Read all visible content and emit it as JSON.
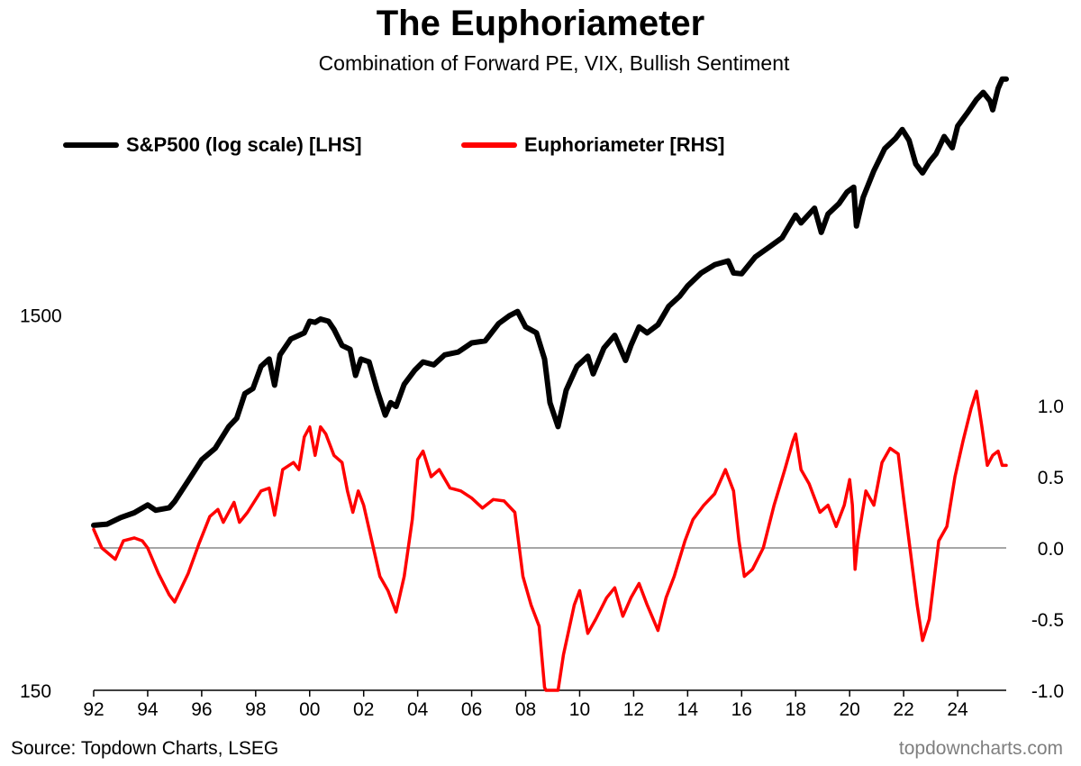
{
  "chart_data": {
    "type": "line",
    "title": "The Euphoriameter",
    "subtitle": "Combination of Forward PE, VIX, Bullish Sentiment",
    "x_ticks": [
      "92",
      "94",
      "96",
      "98",
      "00",
      "02",
      "04",
      "06",
      "08",
      "10",
      "12",
      "14",
      "16",
      "18",
      "20",
      "22",
      "24"
    ],
    "x_tick_years": [
      1992,
      1994,
      1996,
      1998,
      2000,
      2002,
      2004,
      2006,
      2008,
      2010,
      2012,
      2014,
      2016,
      2018,
      2020,
      2022,
      2024
    ],
    "x_range": [
      1992.0,
      2025.8
    ],
    "left_axis": {
      "scale": "log",
      "range": [
        150,
        6500
      ],
      "tick_values": [
        150,
        1500
      ],
      "tick_labels": [
        "150",
        "1500"
      ]
    },
    "right_axis": {
      "scale": "linear",
      "range": [
        -1.0,
        1.0
      ],
      "tick_values": [
        -1.0,
        -0.5,
        0.0,
        0.5,
        1.0
      ],
      "tick_labels": [
        "-1.0",
        "-0.5",
        "0.0",
        "0.5",
        "1.0"
      ]
    },
    "zero_line": true,
    "legend_placement": "top-left",
    "series": [
      {
        "name": "S&P500 (log scale) [LHS]",
        "axis": "left",
        "color": "#000000",
        "points": [
          [
            1992.0,
            415
          ],
          [
            1992.5,
            418
          ],
          [
            1993.0,
            435
          ],
          [
            1993.5,
            448
          ],
          [
            1994.0,
            470
          ],
          [
            1994.3,
            455
          ],
          [
            1994.8,
            462
          ],
          [
            1995.0,
            480
          ],
          [
            1995.5,
            545
          ],
          [
            1996.0,
            620
          ],
          [
            1996.5,
            665
          ],
          [
            1997.0,
            760
          ],
          [
            1997.3,
            800
          ],
          [
            1997.6,
            930
          ],
          [
            1997.9,
            960
          ],
          [
            1998.2,
            1100
          ],
          [
            1998.5,
            1150
          ],
          [
            1998.7,
            980
          ],
          [
            1998.9,
            1180
          ],
          [
            1999.3,
            1300
          ],
          [
            1999.6,
            1330
          ],
          [
            1999.8,
            1350
          ],
          [
            2000.0,
            1450
          ],
          [
            2000.2,
            1440
          ],
          [
            2000.4,
            1470
          ],
          [
            2000.7,
            1450
          ],
          [
            2000.9,
            1380
          ],
          [
            2001.2,
            1250
          ],
          [
            2001.5,
            1220
          ],
          [
            2001.7,
            1040
          ],
          [
            2001.9,
            1150
          ],
          [
            2002.2,
            1130
          ],
          [
            2002.5,
            950
          ],
          [
            2002.8,
            815
          ],
          [
            2003.0,
            880
          ],
          [
            2003.2,
            860
          ],
          [
            2003.5,
            985
          ],
          [
            2003.9,
            1075
          ],
          [
            2004.2,
            1130
          ],
          [
            2004.6,
            1110
          ],
          [
            2005.0,
            1180
          ],
          [
            2005.5,
            1200
          ],
          [
            2006.0,
            1270
          ],
          [
            2006.5,
            1285
          ],
          [
            2007.0,
            1430
          ],
          [
            2007.4,
            1500
          ],
          [
            2007.7,
            1540
          ],
          [
            2008.0,
            1400
          ],
          [
            2008.4,
            1350
          ],
          [
            2008.7,
            1150
          ],
          [
            2008.9,
            880
          ],
          [
            2009.2,
            760
          ],
          [
            2009.5,
            950
          ],
          [
            2009.9,
            1100
          ],
          [
            2010.3,
            1170
          ],
          [
            2010.5,
            1050
          ],
          [
            2010.9,
            1230
          ],
          [
            2011.3,
            1330
          ],
          [
            2011.7,
            1140
          ],
          [
            2011.9,
            1250
          ],
          [
            2012.2,
            1400
          ],
          [
            2012.5,
            1350
          ],
          [
            2012.9,
            1420
          ],
          [
            2013.3,
            1590
          ],
          [
            2013.7,
            1690
          ],
          [
            2014.0,
            1800
          ],
          [
            2014.5,
            1950
          ],
          [
            2015.0,
            2050
          ],
          [
            2015.5,
            2100
          ],
          [
            2015.7,
            1950
          ],
          [
            2016.0,
            1940
          ],
          [
            2016.5,
            2150
          ],
          [
            2017.0,
            2280
          ],
          [
            2017.5,
            2420
          ],
          [
            2018.0,
            2780
          ],
          [
            2018.2,
            2650
          ],
          [
            2018.7,
            2900
          ],
          [
            2018.95,
            2500
          ],
          [
            2019.2,
            2800
          ],
          [
            2019.6,
            2980
          ],
          [
            2019.9,
            3200
          ],
          [
            2020.15,
            3300
          ],
          [
            2020.25,
            2600
          ],
          [
            2020.5,
            3100
          ],
          [
            2020.9,
            3650
          ],
          [
            2021.3,
            4180
          ],
          [
            2021.7,
            4450
          ],
          [
            2021.95,
            4700
          ],
          [
            2022.2,
            4400
          ],
          [
            2022.45,
            3800
          ],
          [
            2022.7,
            3600
          ],
          [
            2022.95,
            3850
          ],
          [
            2023.2,
            4050
          ],
          [
            2023.5,
            4500
          ],
          [
            2023.8,
            4200
          ],
          [
            2024.0,
            4800
          ],
          [
            2024.4,
            5250
          ],
          [
            2024.7,
            5650
          ],
          [
            2024.95,
            5900
          ],
          [
            2025.2,
            5600
          ],
          [
            2025.3,
            5300
          ],
          [
            2025.5,
            6050
          ],
          [
            2025.65,
            6400
          ],
          [
            2025.8,
            6400
          ]
        ]
      },
      {
        "name": "Euphoriameter [RHS]",
        "axis": "right",
        "color": "#ff0000",
        "points": [
          [
            1992.0,
            0.13
          ],
          [
            1992.3,
            0.0
          ],
          [
            1992.8,
            -0.08
          ],
          [
            1993.1,
            0.05
          ],
          [
            1993.5,
            0.07
          ],
          [
            1993.8,
            0.05
          ],
          [
            1994.0,
            0.0
          ],
          [
            1994.4,
            -0.18
          ],
          [
            1994.8,
            -0.33
          ],
          [
            1995.0,
            -0.38
          ],
          [
            1995.5,
            -0.18
          ],
          [
            1995.9,
            0.03
          ],
          [
            1996.3,
            0.22
          ],
          [
            1996.6,
            0.27
          ],
          [
            1996.8,
            0.18
          ],
          [
            1997.2,
            0.32
          ],
          [
            1997.4,
            0.18
          ],
          [
            1997.7,
            0.25
          ],
          [
            1998.2,
            0.4
          ],
          [
            1998.5,
            0.42
          ],
          [
            1998.7,
            0.23
          ],
          [
            1999.0,
            0.55
          ],
          [
            1999.4,
            0.6
          ],
          [
            1999.6,
            0.55
          ],
          [
            1999.8,
            0.78
          ],
          [
            2000.0,
            0.85
          ],
          [
            2000.2,
            0.65
          ],
          [
            2000.4,
            0.85
          ],
          [
            2000.6,
            0.8
          ],
          [
            2000.9,
            0.65
          ],
          [
            2001.2,
            0.6
          ],
          [
            2001.4,
            0.4
          ],
          [
            2001.6,
            0.25
          ],
          [
            2001.8,
            0.4
          ],
          [
            2002.0,
            0.3
          ],
          [
            2002.3,
            0.05
          ],
          [
            2002.6,
            -0.2
          ],
          [
            2002.9,
            -0.3
          ],
          [
            2003.2,
            -0.45
          ],
          [
            2003.5,
            -0.2
          ],
          [
            2003.8,
            0.2
          ],
          [
            2004.0,
            0.62
          ],
          [
            2004.2,
            0.68
          ],
          [
            2004.5,
            0.5
          ],
          [
            2004.8,
            0.55
          ],
          [
            2005.2,
            0.42
          ],
          [
            2005.6,
            0.4
          ],
          [
            2006.0,
            0.35
          ],
          [
            2006.4,
            0.28
          ],
          [
            2006.8,
            0.34
          ],
          [
            2007.2,
            0.33
          ],
          [
            2007.6,
            0.25
          ],
          [
            2007.9,
            -0.2
          ],
          [
            2008.2,
            -0.4
          ],
          [
            2008.5,
            -0.55
          ],
          [
            2008.7,
            -0.98
          ],
          [
            2008.75,
            -1.0
          ],
          [
            2009.2,
            -1.0
          ],
          [
            2009.4,
            -0.75
          ],
          [
            2009.8,
            -0.4
          ],
          [
            2010.0,
            -0.3
          ],
          [
            2010.3,
            -0.6
          ],
          [
            2010.6,
            -0.5
          ],
          [
            2011.0,
            -0.35
          ],
          [
            2011.3,
            -0.28
          ],
          [
            2011.6,
            -0.48
          ],
          [
            2011.9,
            -0.35
          ],
          [
            2012.2,
            -0.25
          ],
          [
            2012.5,
            -0.4
          ],
          [
            2012.9,
            -0.58
          ],
          [
            2013.2,
            -0.35
          ],
          [
            2013.5,
            -0.2
          ],
          [
            2013.9,
            0.05
          ],
          [
            2014.2,
            0.2
          ],
          [
            2014.6,
            0.3
          ],
          [
            2015.0,
            0.38
          ],
          [
            2015.4,
            0.55
          ],
          [
            2015.7,
            0.4
          ],
          [
            2015.9,
            0.05
          ],
          [
            2016.1,
            -0.2
          ],
          [
            2016.4,
            -0.15
          ],
          [
            2016.8,
            0.0
          ],
          [
            2017.2,
            0.3
          ],
          [
            2017.6,
            0.55
          ],
          [
            2017.9,
            0.75
          ],
          [
            2018.0,
            0.8
          ],
          [
            2018.2,
            0.55
          ],
          [
            2018.5,
            0.45
          ],
          [
            2018.9,
            0.25
          ],
          [
            2019.2,
            0.3
          ],
          [
            2019.5,
            0.15
          ],
          [
            2019.8,
            0.3
          ],
          [
            2020.0,
            0.48
          ],
          [
            2020.1,
            0.3
          ],
          [
            2020.2,
            -0.15
          ],
          [
            2020.3,
            0.05
          ],
          [
            2020.6,
            0.4
          ],
          [
            2020.9,
            0.3
          ],
          [
            2021.2,
            0.6
          ],
          [
            2021.5,
            0.7
          ],
          [
            2021.8,
            0.66
          ],
          [
            2022.0,
            0.35
          ],
          [
            2022.2,
            0.05
          ],
          [
            2022.5,
            -0.4
          ],
          [
            2022.7,
            -0.65
          ],
          [
            2022.95,
            -0.5
          ],
          [
            2023.3,
            0.05
          ],
          [
            2023.6,
            0.15
          ],
          [
            2023.9,
            0.5
          ],
          [
            2024.2,
            0.75
          ],
          [
            2024.5,
            0.98
          ],
          [
            2024.7,
            1.1
          ],
          [
            2024.9,
            0.85
          ],
          [
            2025.1,
            0.58
          ],
          [
            2025.3,
            0.65
          ],
          [
            2025.5,
            0.68
          ],
          [
            2025.65,
            0.58
          ],
          [
            2025.8,
            0.58
          ]
        ]
      }
    ],
    "source": "Source: Topdown Charts, LSEG",
    "credit": "topdowncharts.com"
  }
}
